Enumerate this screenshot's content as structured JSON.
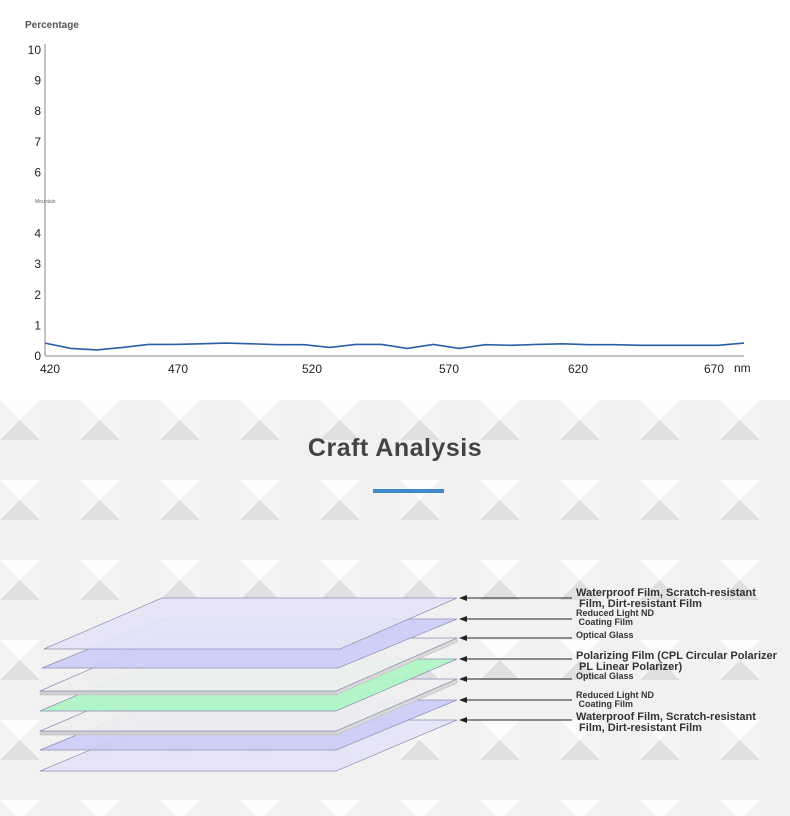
{
  "chart_data": {
    "type": "line",
    "ylabel": "Percentage",
    "xlabel": "nm",
    "annotation": "Mountain",
    "ylim": [
      0,
      10
    ],
    "yticks": [
      "0",
      "1",
      "2",
      "3",
      "4",
      "",
      "6",
      "7",
      "8",
      "9",
      "10"
    ],
    "xticks": [
      420,
      470,
      520,
      570,
      620,
      670
    ],
    "xlim": [
      420,
      690
    ],
    "series": [
      {
        "color": "#2a5fa8",
        "x": [
          420,
          430,
          440,
          450,
          460,
          470,
          480,
          490,
          500,
          510,
          520,
          530,
          540,
          550,
          560,
          570,
          580,
          590,
          600,
          610,
          620,
          630,
          640,
          650,
          660,
          670,
          680,
          690
        ],
        "y": [
          0.42,
          0.25,
          0.2,
          0.28,
          0.38,
          0.38,
          0.4,
          0.42,
          0.4,
          0.37,
          0.37,
          0.28,
          0.38,
          0.38,
          0.25,
          0.38,
          0.25,
          0.37,
          0.35,
          0.38,
          0.4,
          0.37,
          0.37,
          0.35,
          0.35,
          0.35,
          0.35,
          0.42
        ]
      }
    ],
    "grid": false
  },
  "craft": {
    "title": "Craft Analysis",
    "accent_color": "#3f89c8",
    "labels": [
      {
        "text": "Waterproof Film, Scratch-resistant\n Film, Dirt-resistant Film",
        "size": "large"
      },
      {
        "text": "Reduced Light ND\n Coating Film",
        "size": "small"
      },
      {
        "text": "Optical Glass",
        "size": "small"
      },
      {
        "text": "Polarizing Film (CPL Circular Polarizer\n PL Linear Polarizer)",
        "size": "large"
      },
      {
        "text": "Optical Glass",
        "size": "small"
      },
      {
        "text": "Reduced Light ND\n Coating Film",
        "size": "small"
      },
      {
        "text": "Waterproof Film, Scratch-resistant\n Film, Dirt-resistant Film",
        "size": "large"
      }
    ],
    "layer_colors": [
      "#e4e4f5",
      "#cccdf5",
      "#efefef",
      "#aef5c6",
      "#efefef",
      "#cccdf5",
      "#e4e4f5"
    ]
  }
}
